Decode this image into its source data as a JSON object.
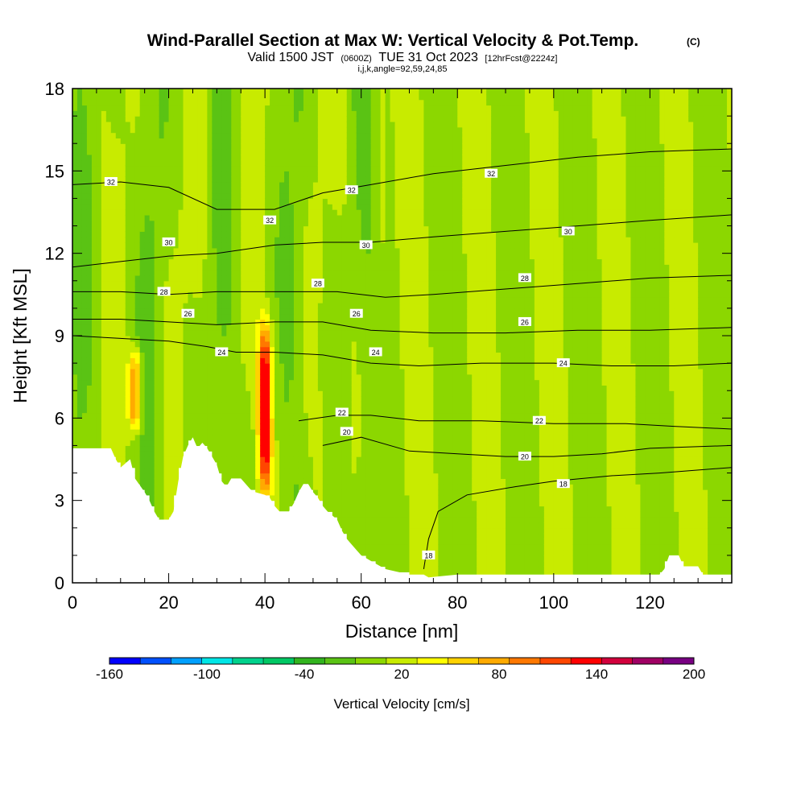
{
  "chart_data": {
    "type": "heatmap",
    "title": "Wind-Parallel Section at Max W: Vertical Velocity & Pot.Temp.",
    "copyright": "(C)",
    "subtitle_parts": [
      "Valid 1500 JST",
      "(0600Z)",
      "TUE 31 Oct 2023",
      "[12hrFcst@2224z]"
    ],
    "subtitle2": "i,j,k,angle=92,59,24,85",
    "xlabel": "Distance [nm]",
    "ylabel": "Height [Kft MSL]",
    "xlim": [
      0,
      137
    ],
    "ylim": [
      0,
      18
    ],
    "xticks": [
      0,
      20,
      40,
      60,
      80,
      100,
      120
    ],
    "xtick_labels": [
      "0",
      "20",
      "40",
      "60",
      "80",
      "100",
      "120"
    ],
    "yticks": [
      0,
      3,
      6,
      9,
      12,
      15,
      18
    ],
    "ytick_labels": [
      "0",
      "3",
      "6",
      "9",
      "12",
      "15",
      "18"
    ],
    "colorbar": {
      "title": "Vertical Velocity [cm/s]",
      "range": [
        -160,
        200
      ],
      "labels": [
        "-160",
        "-100",
        "-40",
        "20",
        "80",
        "140",
        "200"
      ],
      "label_values": [
        -160,
        -100,
        -40,
        20,
        80,
        140,
        200
      ],
      "colors": [
        "#0000ff",
        "#0050ff",
        "#00a0ff",
        "#00e6e6",
        "#00d28c",
        "#00c864",
        "#32b41e",
        "#5ac314",
        "#8cd700",
        "#c8eb00",
        "#ffff00",
        "#ffd200",
        "#ffaa00",
        "#ff7800",
        "#ff4600",
        "#ff0000",
        "#d2003c",
        "#a00064",
        "#780082"
      ]
    },
    "terrain_profile": [
      [
        0,
        4.9
      ],
      [
        8,
        4.9
      ],
      [
        9,
        4.5
      ],
      [
        10,
        4.2
      ],
      [
        12,
        4.5
      ],
      [
        13,
        3.8
      ],
      [
        15,
        3.3
      ],
      [
        16,
        3.0
      ],
      [
        17,
        2.6
      ],
      [
        18,
        2.3
      ],
      [
        20,
        2.3
      ],
      [
        21,
        2.6
      ],
      [
        22,
        3.7
      ],
      [
        23,
        4.6
      ],
      [
        24,
        5.0
      ],
      [
        25,
        5.3
      ],
      [
        26,
        4.9
      ],
      [
        27,
        5.1
      ],
      [
        28,
        4.9
      ],
      [
        29,
        4.6
      ],
      [
        30,
        4.3
      ],
      [
        31,
        3.7
      ],
      [
        32,
        3.5
      ],
      [
        33,
        3.8
      ],
      [
        35,
        3.8
      ],
      [
        37,
        3.4
      ],
      [
        38,
        3.3
      ],
      [
        40,
        3.2
      ],
      [
        41,
        3.1
      ],
      [
        42,
        2.8
      ],
      [
        43,
        2.6
      ],
      [
        45,
        2.6
      ],
      [
        46,
        2.9
      ],
      [
        47,
        3.3
      ],
      [
        48,
        3.6
      ],
      [
        49,
        3.6
      ],
      [
        50,
        3.3
      ],
      [
        51,
        3.1
      ],
      [
        52,
        2.8
      ],
      [
        53,
        2.6
      ],
      [
        55,
        2.3
      ],
      [
        56,
        1.9
      ],
      [
        57,
        1.6
      ],
      [
        58,
        1.4
      ],
      [
        59,
        1.2
      ],
      [
        60,
        1.0
      ],
      [
        61,
        0.9
      ],
      [
        62,
        0.8
      ],
      [
        63,
        0.7
      ],
      [
        64,
        0.6
      ],
      [
        65,
        0.5
      ],
      [
        70,
        0.3
      ],
      [
        73,
        0.3
      ],
      [
        74,
        0.2
      ],
      [
        80,
        0.3
      ],
      [
        122,
        0.3
      ],
      [
        123,
        0.5
      ],
      [
        124,
        1.0
      ],
      [
        126,
        1.0
      ],
      [
        127,
        0.6
      ],
      [
        130,
        0.6
      ],
      [
        131,
        0.3
      ],
      [
        137,
        0.3
      ]
    ],
    "theta_contours": [
      {
        "level": 18,
        "points": [
          [
            73,
            0.5
          ],
          [
            74,
            1.6
          ],
          [
            76,
            2.6
          ],
          [
            82,
            3.2
          ],
          [
            92,
            3.5
          ],
          [
            100,
            3.7
          ],
          [
            112,
            3.9
          ],
          [
            122,
            4.0
          ],
          [
            137,
            4.2
          ]
        ],
        "label_at": [
          74,
          1.0
        ]
      },
      {
        "level": 20,
        "points": [
          [
            52,
            5.0
          ],
          [
            60,
            5.3
          ],
          [
            70,
            4.8
          ],
          [
            80,
            4.7
          ],
          [
            90,
            4.6
          ],
          [
            100,
            4.6
          ],
          [
            110,
            4.7
          ],
          [
            120,
            4.9
          ],
          [
            137,
            5.0
          ]
        ],
        "label_at": [
          94,
          4.6
        ]
      },
      {
        "level": 22,
        "points": [
          [
            47,
            5.9
          ],
          [
            55,
            6.1
          ],
          [
            62,
            6.1
          ],
          [
            72,
            5.9
          ],
          [
            85,
            5.9
          ],
          [
            100,
            5.8
          ],
          [
            115,
            5.8
          ],
          [
            125,
            5.7
          ],
          [
            137,
            5.6
          ]
        ],
        "label_at": [
          97,
          5.9
        ]
      },
      {
        "level": 24,
        "points": [
          [
            0,
            9.0
          ],
          [
            10,
            8.9
          ],
          [
            20,
            8.8
          ],
          [
            28,
            8.6
          ],
          [
            34,
            8.4
          ],
          [
            42,
            8.4
          ],
          [
            52,
            8.3
          ],
          [
            62,
            8.0
          ],
          [
            72,
            7.9
          ],
          [
            85,
            8.0
          ],
          [
            100,
            8.0
          ],
          [
            112,
            7.9
          ],
          [
            125,
            7.9
          ],
          [
            137,
            8.0
          ]
        ],
        "label_at": [
          31,
          8.4
        ]
      },
      {
        "level": 26,
        "points": [
          [
            0,
            9.6
          ],
          [
            10,
            9.6
          ],
          [
            20,
            9.5
          ],
          [
            30,
            9.4
          ],
          [
            42,
            9.5
          ],
          [
            52,
            9.5
          ],
          [
            62,
            9.2
          ],
          [
            75,
            9.1
          ],
          [
            90,
            9.1
          ],
          [
            105,
            9.2
          ],
          [
            120,
            9.2
          ],
          [
            137,
            9.3
          ]
        ],
        "label_at": [
          24,
          9.8
        ]
      },
      {
        "level": 28,
        "points": [
          [
            0,
            10.6
          ],
          [
            10,
            10.6
          ],
          [
            20,
            10.5
          ],
          [
            30,
            10.6
          ],
          [
            42,
            10.6
          ],
          [
            55,
            10.6
          ],
          [
            65,
            10.4
          ],
          [
            75,
            10.5
          ],
          [
            90,
            10.7
          ],
          [
            105,
            10.9
          ],
          [
            120,
            11.1
          ],
          [
            137,
            11.2
          ]
        ],
        "label_at": [
          19,
          10.6
        ]
      },
      {
        "level": 30,
        "points": [
          [
            0,
            11.5
          ],
          [
            10,
            11.7
          ],
          [
            20,
            11.9
          ],
          [
            30,
            12.0
          ],
          [
            42,
            12.3
          ],
          [
            52,
            12.4
          ],
          [
            62,
            12.4
          ],
          [
            75,
            12.6
          ],
          [
            90,
            12.8
          ],
          [
            105,
            13.0
          ],
          [
            120,
            13.2
          ],
          [
            137,
            13.4
          ]
        ],
        "label_at": [
          20,
          12.4
        ]
      },
      {
        "level": 32,
        "points": [
          [
            0,
            14.5
          ],
          [
            10,
            14.6
          ],
          [
            20,
            14.4
          ],
          [
            30,
            13.6
          ],
          [
            42,
            13.6
          ],
          [
            52,
            14.2
          ],
          [
            62,
            14.5
          ],
          [
            75,
            14.9
          ],
          [
            90,
            15.2
          ],
          [
            105,
            15.5
          ],
          [
            120,
            15.7
          ],
          [
            137,
            15.8
          ]
        ],
        "label_at": [
          87,
          14.9
        ]
      }
    ],
    "theta_extra_labels": [
      {
        "level": 32,
        "at": [
          8,
          14.6
        ]
      },
      {
        "level": 32,
        "at": [
          58,
          14.3
        ]
      },
      {
        "level": 32,
        "at": [
          41,
          13.2
        ]
      },
      {
        "level": 30,
        "at": [
          61,
          12.3
        ]
      },
      {
        "level": 30,
        "at": [
          103,
          12.8
        ]
      },
      {
        "level": 28,
        "at": [
          51,
          10.9
        ]
      },
      {
        "level": 28,
        "at": [
          94,
          11.1
        ]
      },
      {
        "level": 26,
        "at": [
          59,
          9.8
        ]
      },
      {
        "level": 26,
        "at": [
          94,
          9.5
        ]
      },
      {
        "level": 24,
        "at": [
          63,
          8.4
        ]
      },
      {
        "level": 24,
        "at": [
          102,
          8.0
        ]
      },
      {
        "level": 22,
        "at": [
          56,
          6.2
        ]
      },
      {
        "level": 20,
        "at": [
          57,
          5.5
        ]
      },
      {
        "level": 18,
        "at": [
          102,
          3.6
        ]
      }
    ],
    "updraft_cores": [
      {
        "x": 40,
        "y_range": [
          3.3,
          9.3
        ],
        "w_max": 150
      },
      {
        "x": 13,
        "y_range": [
          5.5,
          8.5
        ],
        "w_max": 90
      }
    ]
  }
}
